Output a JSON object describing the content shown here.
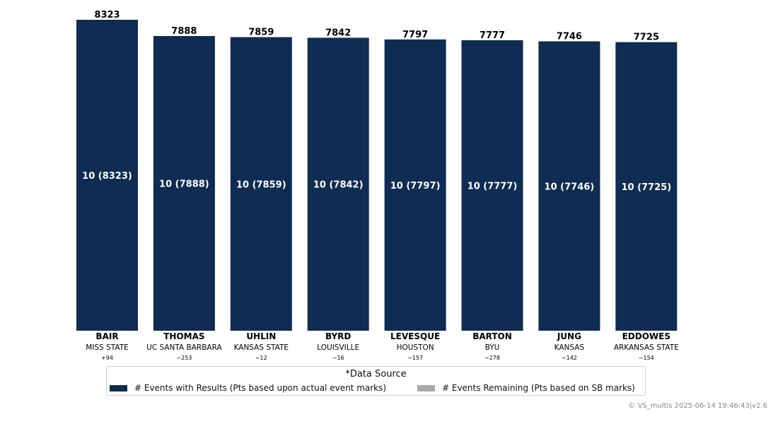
{
  "chart_data": {
    "type": "bar",
    "categories": [
      "BAIR",
      "THOMAS",
      "UHLIN",
      "BYRD",
      "LEVESQUE",
      "BARTON",
      "JUNG",
      "EDDOWES"
    ],
    "schools": [
      "MISS STATE",
      "UC SANTA BARBARA",
      "KANSAS STATE",
      "LOUISVILLE",
      "HOUSTON",
      "BYU",
      "KANSAS",
      "ARKANSAS STATE"
    ],
    "diffs": [
      "+94",
      "−253",
      "−12",
      "−16",
      "−157",
      "−278",
      "−142",
      "−154"
    ],
    "values": [
      8323,
      7888,
      7859,
      7842,
      7797,
      7777,
      7746,
      7725
    ],
    "inner_labels": [
      "10 (8323)",
      "10 (7888)",
      "10 (7859)",
      "10 (7842)",
      "10 (7797)",
      "10 (7777)",
      "10 (7746)",
      "10 (7725)"
    ],
    "ylim": [
      0,
      8323
    ],
    "grid": false,
    "colors": {
      "results": "#0f2c52",
      "remaining": "#a9a9a9"
    },
    "legend": {
      "title": "*Data Source",
      "placement": "bottom-center",
      "entries": [
        "# Events with Results (Pts based upon actual event marks)",
        "# Events Remaining (Pts based on SB marks)"
      ]
    }
  },
  "footer": {
    "copyright": "© VS_multis 2025-06-14 19:46:43|v2.6"
  }
}
